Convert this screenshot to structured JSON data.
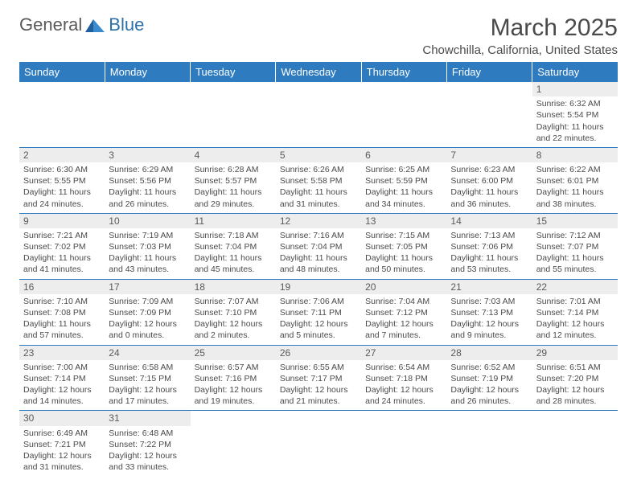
{
  "logo": {
    "text1": "General",
    "text2": "Blue"
  },
  "title": "March 2025",
  "subtitle": "Chowchilla, California, United States",
  "colors": {
    "header_bg": "#2f7bbf",
    "header_text": "#ffffff",
    "border": "#2f7bbf",
    "daynum_bg": "#ededed",
    "body_text": "#4a4a4a"
  },
  "weekdays": [
    "Sunday",
    "Monday",
    "Tuesday",
    "Wednesday",
    "Thursday",
    "Friday",
    "Saturday"
  ],
  "weeks": [
    [
      null,
      null,
      null,
      null,
      null,
      null,
      {
        "n": "1",
        "sr": "Sunrise: 6:32 AM",
        "ss": "Sunset: 5:54 PM",
        "dl": "Daylight: 11 hours and 22 minutes."
      }
    ],
    [
      {
        "n": "2",
        "sr": "Sunrise: 6:30 AM",
        "ss": "Sunset: 5:55 PM",
        "dl": "Daylight: 11 hours and 24 minutes."
      },
      {
        "n": "3",
        "sr": "Sunrise: 6:29 AM",
        "ss": "Sunset: 5:56 PM",
        "dl": "Daylight: 11 hours and 26 minutes."
      },
      {
        "n": "4",
        "sr": "Sunrise: 6:28 AM",
        "ss": "Sunset: 5:57 PM",
        "dl": "Daylight: 11 hours and 29 minutes."
      },
      {
        "n": "5",
        "sr": "Sunrise: 6:26 AM",
        "ss": "Sunset: 5:58 PM",
        "dl": "Daylight: 11 hours and 31 minutes."
      },
      {
        "n": "6",
        "sr": "Sunrise: 6:25 AM",
        "ss": "Sunset: 5:59 PM",
        "dl": "Daylight: 11 hours and 34 minutes."
      },
      {
        "n": "7",
        "sr": "Sunrise: 6:23 AM",
        "ss": "Sunset: 6:00 PM",
        "dl": "Daylight: 11 hours and 36 minutes."
      },
      {
        "n": "8",
        "sr": "Sunrise: 6:22 AM",
        "ss": "Sunset: 6:01 PM",
        "dl": "Daylight: 11 hours and 38 minutes."
      }
    ],
    [
      {
        "n": "9",
        "sr": "Sunrise: 7:21 AM",
        "ss": "Sunset: 7:02 PM",
        "dl": "Daylight: 11 hours and 41 minutes."
      },
      {
        "n": "10",
        "sr": "Sunrise: 7:19 AM",
        "ss": "Sunset: 7:03 PM",
        "dl": "Daylight: 11 hours and 43 minutes."
      },
      {
        "n": "11",
        "sr": "Sunrise: 7:18 AM",
        "ss": "Sunset: 7:04 PM",
        "dl": "Daylight: 11 hours and 45 minutes."
      },
      {
        "n": "12",
        "sr": "Sunrise: 7:16 AM",
        "ss": "Sunset: 7:04 PM",
        "dl": "Daylight: 11 hours and 48 minutes."
      },
      {
        "n": "13",
        "sr": "Sunrise: 7:15 AM",
        "ss": "Sunset: 7:05 PM",
        "dl": "Daylight: 11 hours and 50 minutes."
      },
      {
        "n": "14",
        "sr": "Sunrise: 7:13 AM",
        "ss": "Sunset: 7:06 PM",
        "dl": "Daylight: 11 hours and 53 minutes."
      },
      {
        "n": "15",
        "sr": "Sunrise: 7:12 AM",
        "ss": "Sunset: 7:07 PM",
        "dl": "Daylight: 11 hours and 55 minutes."
      }
    ],
    [
      {
        "n": "16",
        "sr": "Sunrise: 7:10 AM",
        "ss": "Sunset: 7:08 PM",
        "dl": "Daylight: 11 hours and 57 minutes."
      },
      {
        "n": "17",
        "sr": "Sunrise: 7:09 AM",
        "ss": "Sunset: 7:09 PM",
        "dl": "Daylight: 12 hours and 0 minutes."
      },
      {
        "n": "18",
        "sr": "Sunrise: 7:07 AM",
        "ss": "Sunset: 7:10 PM",
        "dl": "Daylight: 12 hours and 2 minutes."
      },
      {
        "n": "19",
        "sr": "Sunrise: 7:06 AM",
        "ss": "Sunset: 7:11 PM",
        "dl": "Daylight: 12 hours and 5 minutes."
      },
      {
        "n": "20",
        "sr": "Sunrise: 7:04 AM",
        "ss": "Sunset: 7:12 PM",
        "dl": "Daylight: 12 hours and 7 minutes."
      },
      {
        "n": "21",
        "sr": "Sunrise: 7:03 AM",
        "ss": "Sunset: 7:13 PM",
        "dl": "Daylight: 12 hours and 9 minutes."
      },
      {
        "n": "22",
        "sr": "Sunrise: 7:01 AM",
        "ss": "Sunset: 7:14 PM",
        "dl": "Daylight: 12 hours and 12 minutes."
      }
    ],
    [
      {
        "n": "23",
        "sr": "Sunrise: 7:00 AM",
        "ss": "Sunset: 7:14 PM",
        "dl": "Daylight: 12 hours and 14 minutes."
      },
      {
        "n": "24",
        "sr": "Sunrise: 6:58 AM",
        "ss": "Sunset: 7:15 PM",
        "dl": "Daylight: 12 hours and 17 minutes."
      },
      {
        "n": "25",
        "sr": "Sunrise: 6:57 AM",
        "ss": "Sunset: 7:16 PM",
        "dl": "Daylight: 12 hours and 19 minutes."
      },
      {
        "n": "26",
        "sr": "Sunrise: 6:55 AM",
        "ss": "Sunset: 7:17 PM",
        "dl": "Daylight: 12 hours and 21 minutes."
      },
      {
        "n": "27",
        "sr": "Sunrise: 6:54 AM",
        "ss": "Sunset: 7:18 PM",
        "dl": "Daylight: 12 hours and 24 minutes."
      },
      {
        "n": "28",
        "sr": "Sunrise: 6:52 AM",
        "ss": "Sunset: 7:19 PM",
        "dl": "Daylight: 12 hours and 26 minutes."
      },
      {
        "n": "29",
        "sr": "Sunrise: 6:51 AM",
        "ss": "Sunset: 7:20 PM",
        "dl": "Daylight: 12 hours and 28 minutes."
      }
    ],
    [
      {
        "n": "30",
        "sr": "Sunrise: 6:49 AM",
        "ss": "Sunset: 7:21 PM",
        "dl": "Daylight: 12 hours and 31 minutes."
      },
      {
        "n": "31",
        "sr": "Sunrise: 6:48 AM",
        "ss": "Sunset: 7:22 PM",
        "dl": "Daylight: 12 hours and 33 minutes."
      },
      null,
      null,
      null,
      null,
      null
    ]
  ]
}
